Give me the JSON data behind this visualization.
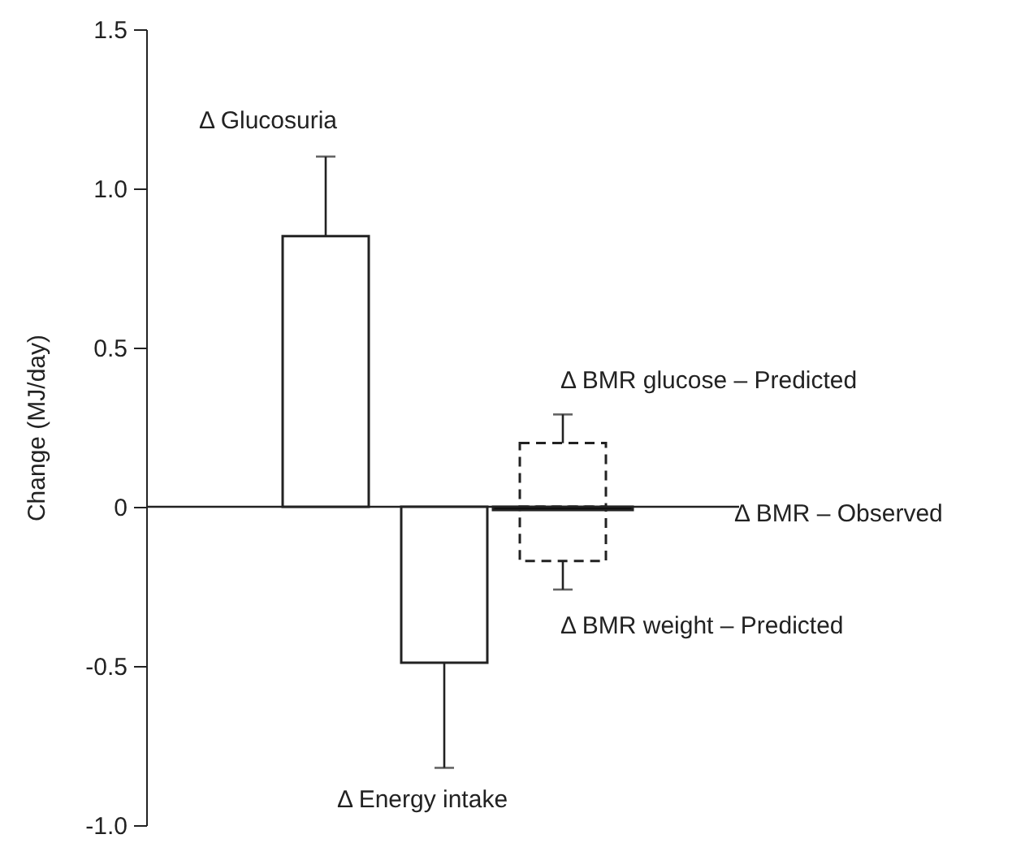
{
  "chart_data": {
    "type": "bar",
    "ylabel": "Change (MJ/day)",
    "categories": [
      null,
      null,
      null
    ],
    "series": [
      {
        "color": "#ffffff",
        "line_style": "solid",
        "values": [
          0.85,
          -0.49,
          null
        ],
        "errors": [
          [
            0.85,
            1.1
          ],
          [
            -0.82,
            -0.49
          ],
          null
        ]
      },
      {
        "color": "#ffffff",
        "line_style": "dashed",
        "values": [
          null,
          null,
          0.2
        ],
        "errors": [
          null,
          null,
          [
            0.2,
            0.29
          ]
        ]
      },
      {
        "color": "#ffffff",
        "line_style": "dashed",
        "values": [
          null,
          null,
          -0.17
        ],
        "errors": [
          null,
          null,
          [
            -0.26,
            -0.17
          ]
        ]
      },
      {
        "color": "#000000",
        "line_style": "solid",
        "values": [
          null,
          null,
          -0.01
        ]
      }
    ],
    "ylim": [
      -1,
      1.5
    ],
    "yticks": [
      {
        "value": -1,
        "label": "-1.0"
      },
      -0.5,
      0,
      0.5,
      {
        "value": 1,
        "label": "1.0"
      },
      1.5
    ],
    "ref_lines": [
      {
        "axis": "y",
        "value": 0
      }
    ],
    "annotations": [
      "Δ Glucosuria",
      "Δ Energy intake",
      "Δ BMR  glucose – Predicted",
      "Δ BMR – Observed",
      "Δ BMR  weight – Predicted"
    ],
    "grid": false,
    "tick_labels": "y"
  }
}
